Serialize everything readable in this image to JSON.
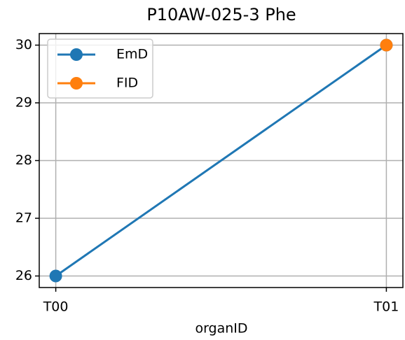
{
  "chart_data": {
    "type": "line",
    "title": "P10AW-025-3 Phe",
    "x_label": "organID",
    "categories": [
      "T00",
      "T01"
    ],
    "series": [
      {
        "name": "EmD",
        "color": "#1f77b4",
        "values": [
          26,
          30
        ]
      },
      {
        "name": "FID",
        "color": "#ff7f0e",
        "values": [
          null,
          30
        ]
      }
    ],
    "ylim": [
      25.8,
      30.2
    ],
    "yticks": [
      26,
      27,
      28,
      29,
      30
    ],
    "grid": true,
    "legend": "upper left"
  }
}
